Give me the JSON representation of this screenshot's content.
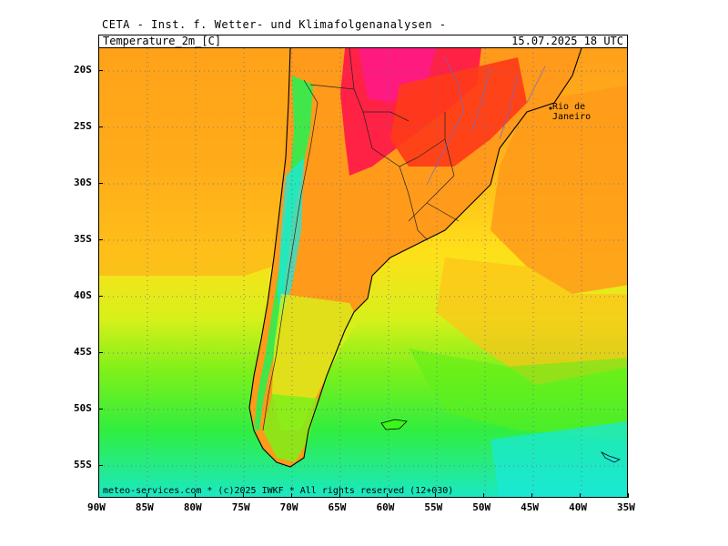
{
  "header": {
    "title": "CETA - Inst. f. Wetter- und Klimafolgenanalysen -",
    "parameter": "Temperature_2m_[C]",
    "datetime": "15.07.2025 18 UTC"
  },
  "map": {
    "city_label": "Rio de Janeiro",
    "copyright": "meteo-services.com * (c)2025 IWKF * All rights reserved (12+030)",
    "lon_labels": [
      "90W",
      "85W",
      "80W",
      "75W",
      "70W",
      "65W",
      "60W",
      "55W",
      "50W",
      "45W",
      "40W",
      "35W"
    ],
    "lat_labels": [
      "20S",
      "25S",
      "30S",
      "35S",
      "40S",
      "45S",
      "50S",
      "55S"
    ],
    "colors": {
      "hot": "#ff1a6e",
      "warm_red": "#ff3a1a",
      "orange": "#ff8c1a",
      "amber": "#ffb51a",
      "yellow": "#ffe81a",
      "lime": "#b8f51a",
      "green": "#3cf51a",
      "teal": "#1af5a0",
      "cyan": "#1ae8e0"
    }
  }
}
